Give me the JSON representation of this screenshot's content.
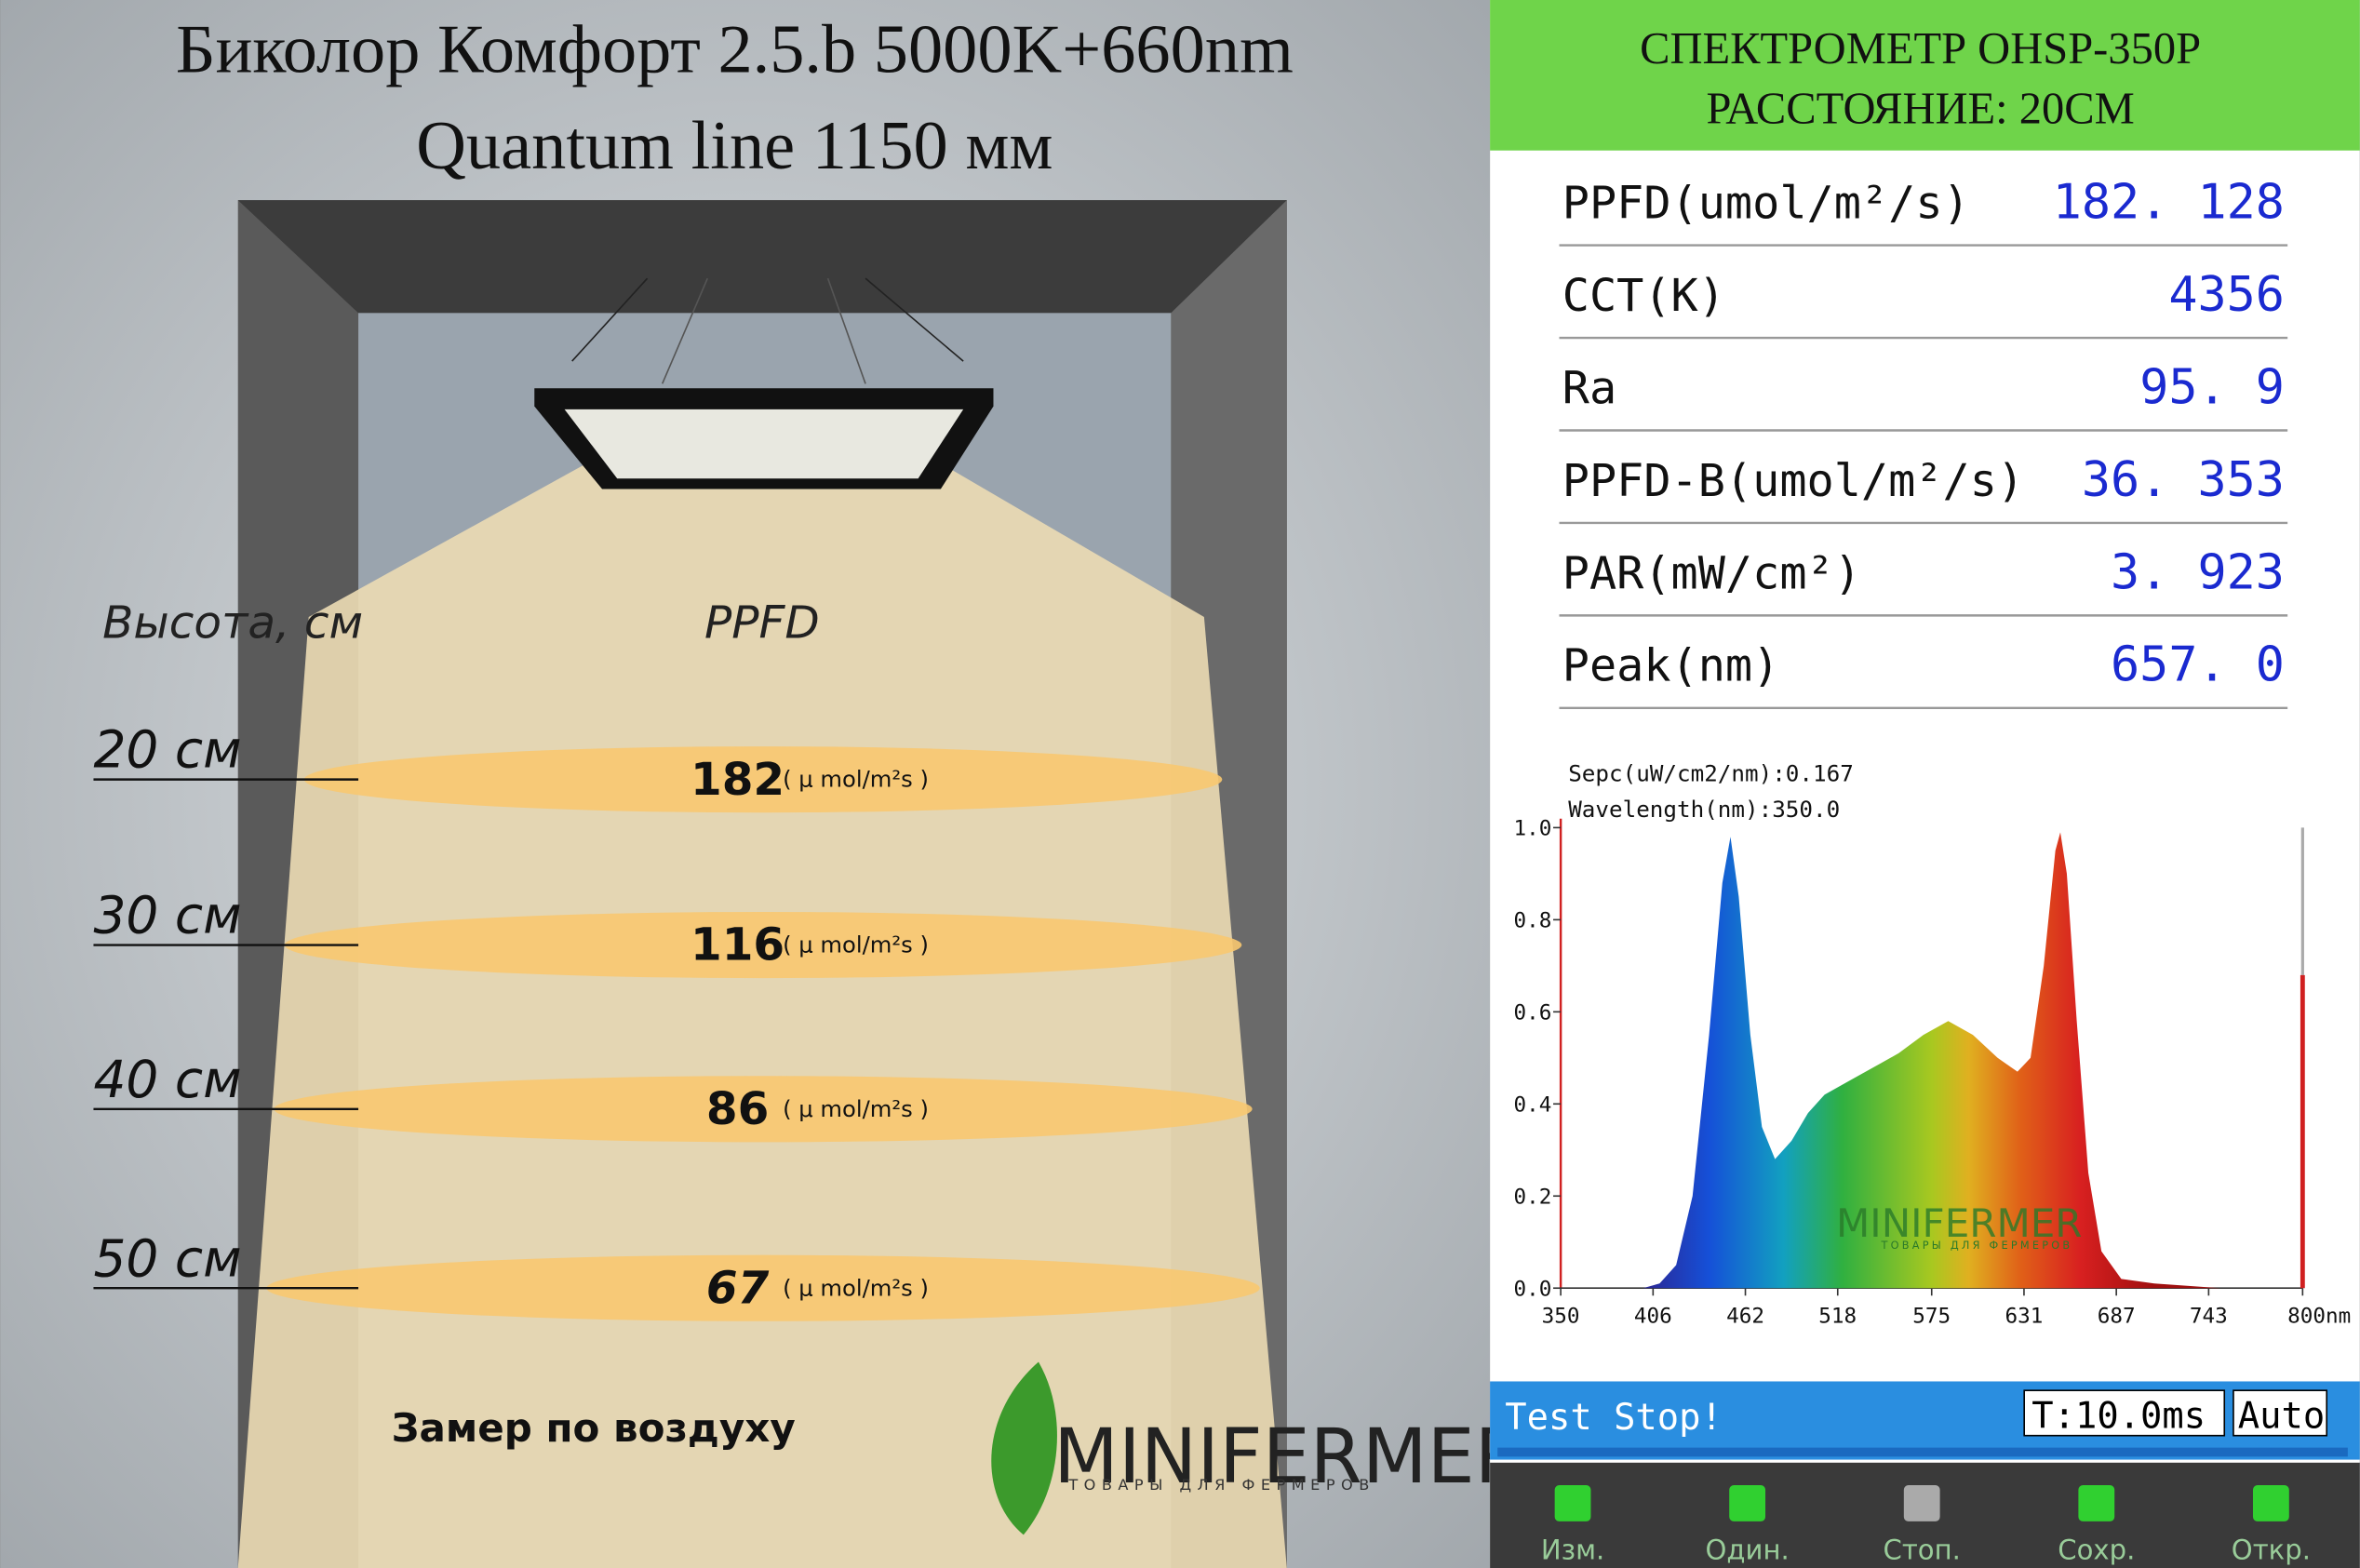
{
  "header": {
    "title_line1": "Биколор Комфорт 2.5.b 5000K+660nm",
    "title_line2": "Quantum line 1150 мм"
  },
  "room": {
    "height_label": "Высота, см",
    "ppfd_label": "PPFD",
    "rows": [
      {
        "height": "20 см",
        "ppfd": "182",
        "unit": "( μ mol/m²s )"
      },
      {
        "height": "30 см",
        "ppfd": "116",
        "unit": "( μ mol/m²s )"
      },
      {
        "height": "40 см",
        "ppfd": "86",
        "unit": "( μ mol/m²s )"
      },
      {
        "height": "50 см",
        "ppfd": "67",
        "unit": "( μ mol/m²s )"
      }
    ],
    "note": "Замер по воздуху",
    "logo": "MINIFERMER",
    "logo_sub": "ТОВАРЫ ДЛЯ ФЕРМЕРОВ"
  },
  "spectrometer": {
    "title": "СПЕКТРОМЕТР OHSP-350P",
    "distance": "РАССТОЯНИЕ: 20СМ",
    "rows": [
      {
        "label": "PPFD(umol/m²/s)",
        "value": "182. 128"
      },
      {
        "label": "CCT(K)",
        "value": "4356"
      },
      {
        "label": "Ra",
        "value": "95. 9"
      },
      {
        "label": "PPFD-B(umol/m²/s)",
        "value": "36. 353"
      },
      {
        "label": "PAR(mW/cm²)",
        "value": "3. 923"
      },
      {
        "label": "Peak(nm)",
        "value": "657. 0"
      }
    ],
    "sepc": "Sepc(uW/cm2/nm):0.167",
    "wavelength": "Wavelength(nm):350.0",
    "logo": "MINIFERMER",
    "logo_sub": "ТОВАРЫ ДЛЯ ФЕРМЕРОВ",
    "status": "Test Stop!",
    "time": "T:10.0ms",
    "mode": "Auto",
    "buttons": [
      "Изм.",
      "Один.",
      "Стоп.",
      "Сохр.",
      "Откр."
    ]
  },
  "chart_data": {
    "type": "area",
    "x": [
      350,
      400,
      410,
      420,
      430,
      440,
      448,
      453,
      458,
      465,
      472,
      480,
      490,
      500,
      510,
      525,
      540,
      555,
      570,
      585,
      600,
      615,
      627,
      635,
      643,
      650,
      653,
      657,
      663,
      670,
      678,
      690,
      710,
      750,
      800
    ],
    "values": [
      0,
      0,
      0.01,
      0.05,
      0.2,
      0.55,
      0.88,
      0.98,
      0.85,
      0.55,
      0.35,
      0.28,
      0.32,
      0.38,
      0.42,
      0.45,
      0.48,
      0.51,
      0.55,
      0.58,
      0.55,
      0.5,
      0.47,
      0.5,
      0.7,
      0.95,
      0.99,
      0.9,
      0.58,
      0.25,
      0.08,
      0.02,
      0.01,
      0,
      0
    ],
    "xlim": [
      350,
      800
    ],
    "ylim": [
      0,
      1
    ],
    "xticks": [
      350,
      406,
      462,
      518,
      575,
      631,
      687,
      743,
      {
        "value": 800,
        "label": "800nm"
      }
    ],
    "yticks": [
      {
        "value": 0,
        "label": "0.0"
      },
      0.2,
      0.4,
      0.6,
      0.8,
      {
        "value": 1,
        "label": "1.0"
      }
    ]
  }
}
